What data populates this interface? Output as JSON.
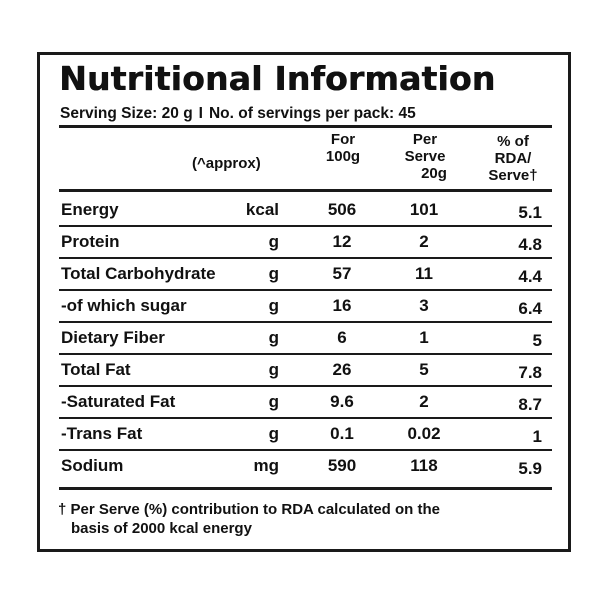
{
  "title": "Nutritional Information",
  "serving": {
    "size": "Serving Size: 20 g",
    "separator": "I",
    "servings": "No. of servings per pack: 45"
  },
  "header": {
    "approx": "(^approx)",
    "col_100g": [
      "For",
      "100g"
    ],
    "col_serve": [
      "Per",
      "Serve",
      "20g"
    ],
    "col_rda": [
      "% of",
      "RDA/",
      "Serve†"
    ]
  },
  "rows": [
    {
      "name": "Energy",
      "unit": "kcal",
      "per100": "506",
      "perServe": "101",
      "rda": "5.1"
    },
    {
      "name": "Protein",
      "unit": "g",
      "per100": "12",
      "perServe": "2",
      "rda": "4.8"
    },
    {
      "name": "Total Carbohydrate",
      "unit": "g",
      "per100": "57",
      "perServe": "11",
      "rda": "4.4"
    },
    {
      "name": "-of which sugar",
      "unit": "g",
      "per100": "16",
      "perServe": "3",
      "rda": "6.4"
    },
    {
      "name": "Dietary Fiber",
      "unit": "g",
      "per100": "6",
      "perServe": "1",
      "rda": "5"
    },
    {
      "name": "Total Fat",
      "unit": "g",
      "per100": "26",
      "perServe": "5",
      "rda": "7.8"
    },
    {
      "name": "-Saturated Fat",
      "unit": "g",
      "per100": "9.6",
      "perServe": "2",
      "rda": "8.7"
    },
    {
      "name": "-Trans Fat",
      "unit": "g",
      "per100": "0.1",
      "perServe": "0.02",
      "rda": "1"
    },
    {
      "name": "Sodium",
      "unit": "mg",
      "per100": "590",
      "perServe": "118",
      "rda": "5.9"
    }
  ],
  "footnote": {
    "line1": "† Per Serve (%) contribution to RDA calculated on the",
    "line2": "basis of 2000 kcal energy"
  }
}
